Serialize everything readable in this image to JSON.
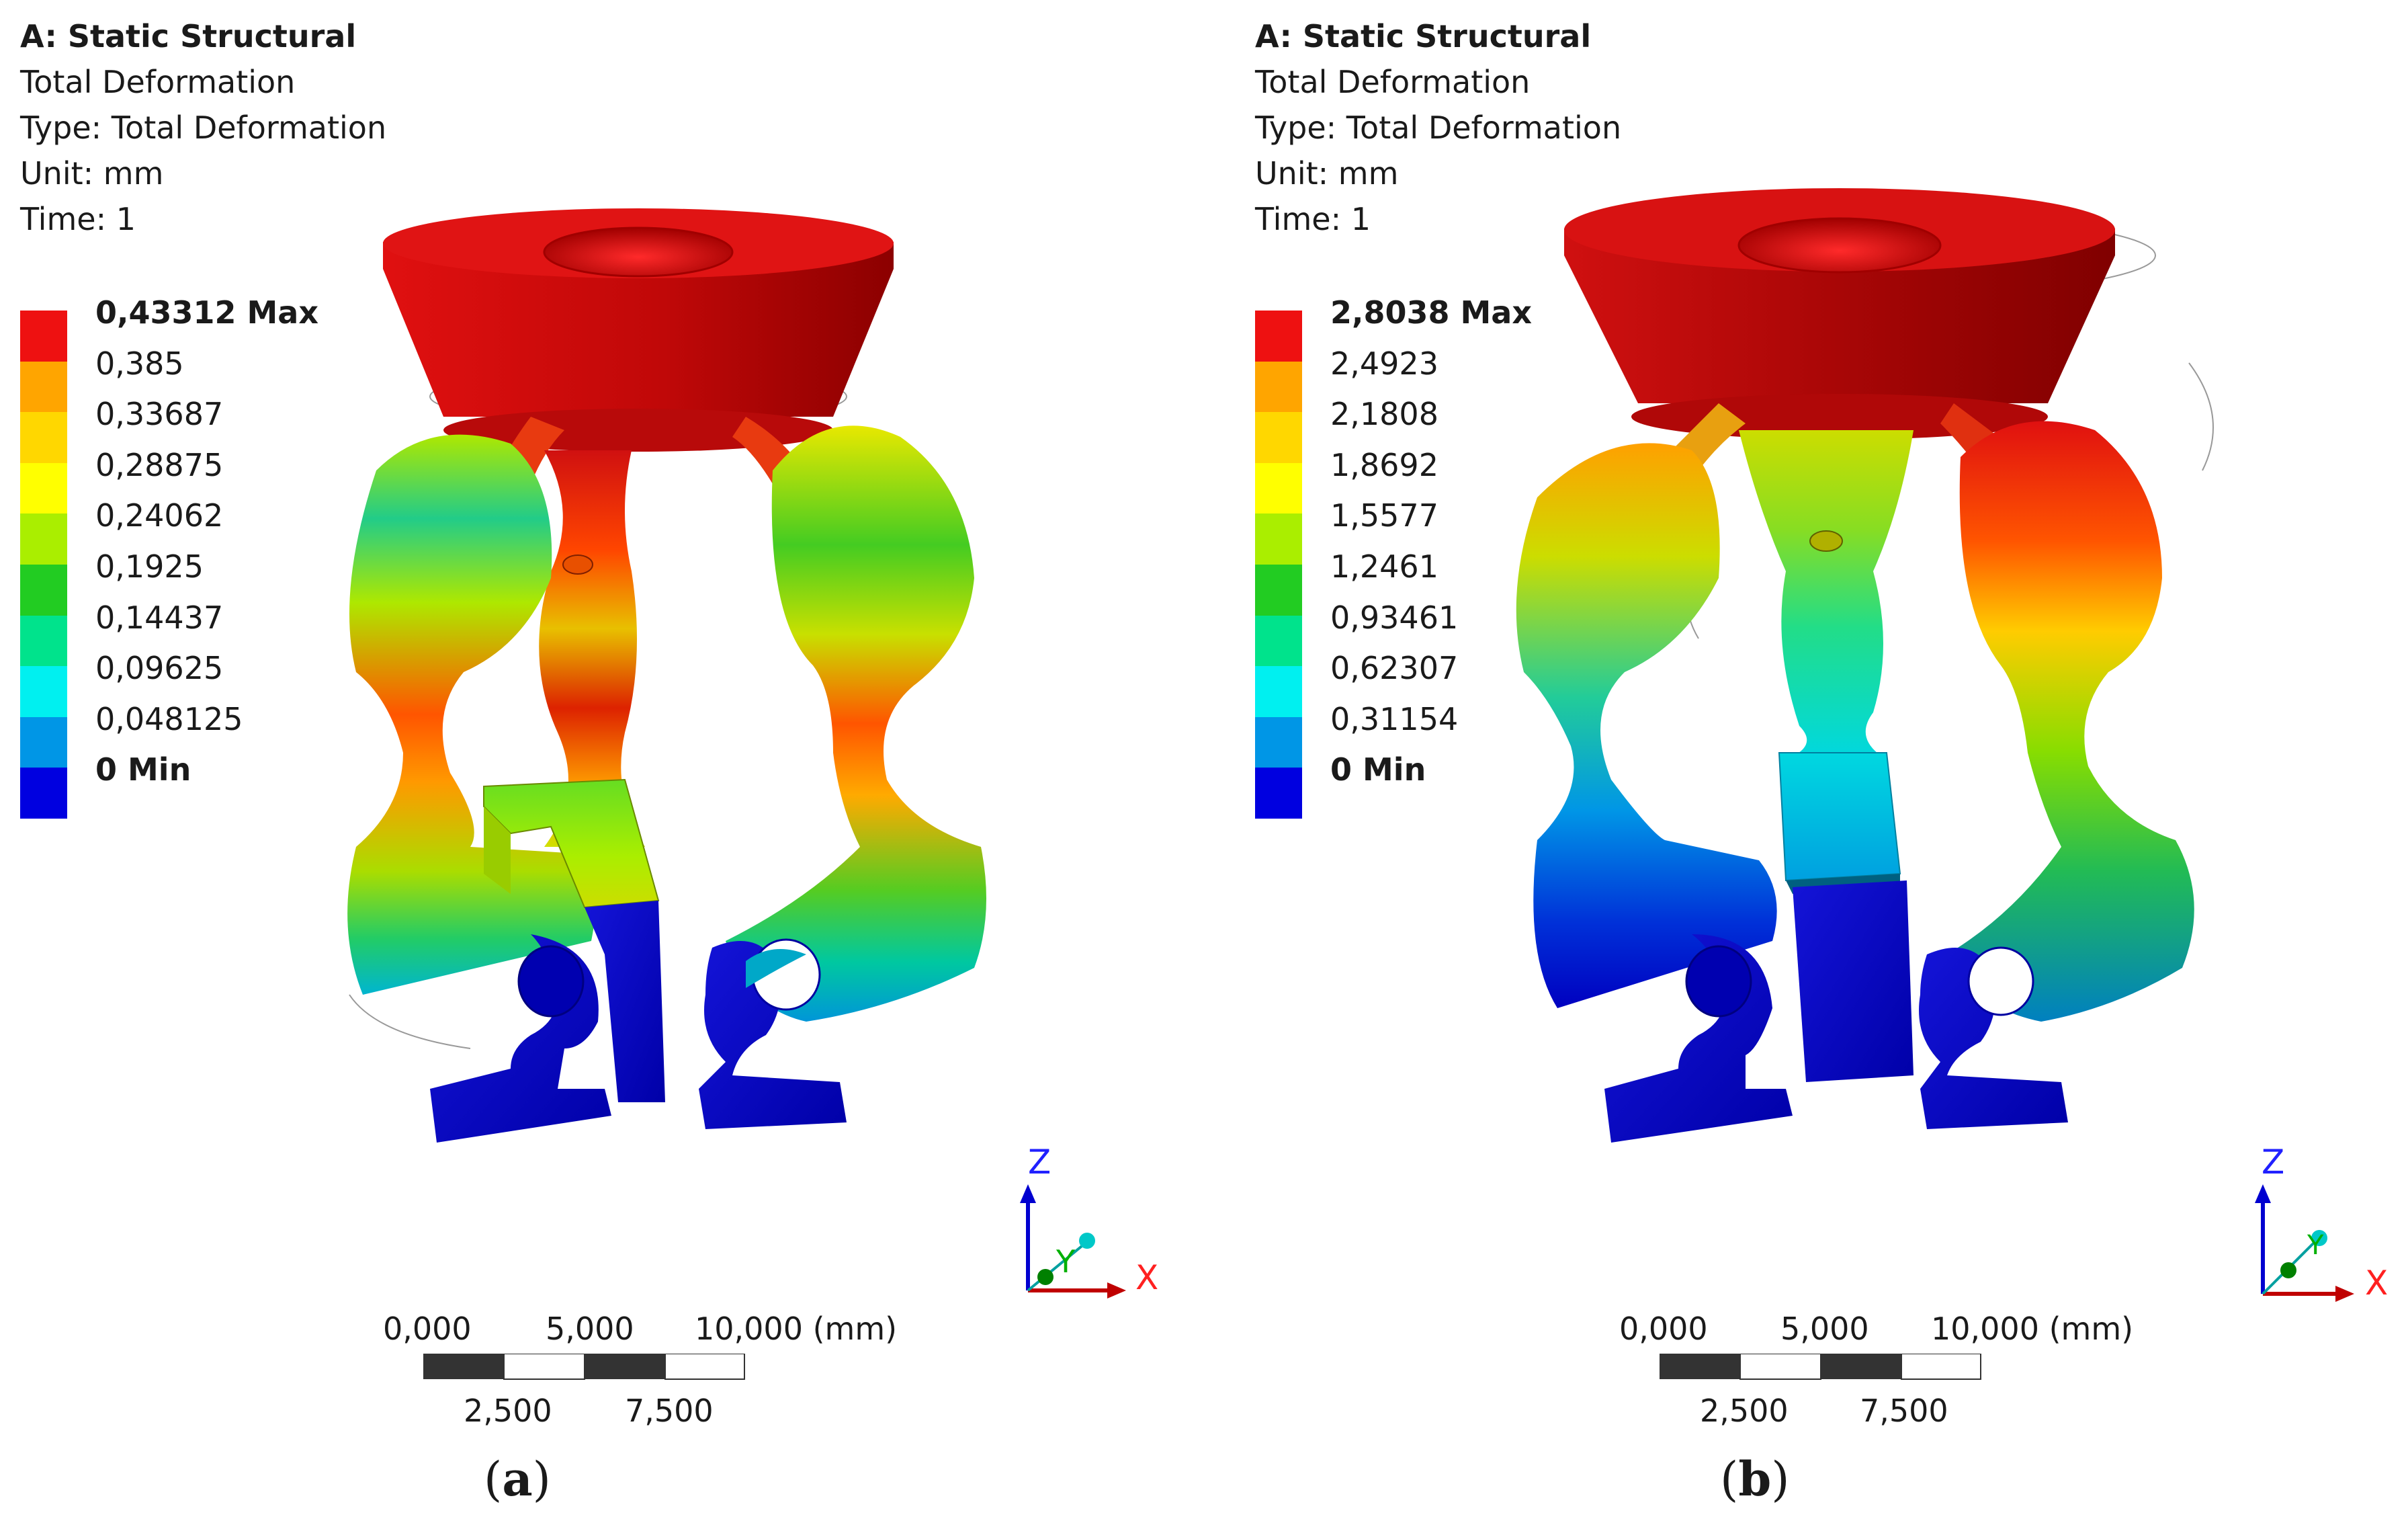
{
  "panels": [
    {
      "caption": "(a)",
      "caption_letter": "a",
      "info": {
        "analysis": "A: Static Structural",
        "result": "Total Deformation",
        "type": "Type: Total Deformation",
        "unit": "Unit: mm",
        "time": "Time: 1"
      },
      "legend": {
        "labels": [
          "0,43312 Max",
          "0,385",
          "0,33687",
          "0,28875",
          "0,24062",
          "0,1925",
          "0,14437",
          "0,09625",
          "0,048125"
        ],
        "min_label": "0 Min"
      },
      "scale": {
        "top_ticks": [
          "0,000",
          "5,000",
          "10,000 (mm)"
        ],
        "bottom_ticks": [
          "2,500",
          "7,500"
        ]
      },
      "axes": {
        "x": "X",
        "y": "Y",
        "z": "Z"
      }
    },
    {
      "caption": "(b)",
      "caption_letter": "b",
      "info": {
        "analysis": "A: Static Structural",
        "result": "Total Deformation",
        "type": "Type: Total Deformation",
        "unit": "Unit: mm",
        "time": "Time: 1"
      },
      "legend": {
        "labels": [
          "2,8038 Max",
          "2,4923",
          "2,1808",
          "1,8692",
          "1,5577",
          "1,2461",
          "0,93461",
          "0,62307",
          "0,31154"
        ],
        "min_label": "0 Min"
      },
      "scale": {
        "top_ticks": [
          "0,000",
          "5,000",
          "10,000 (mm)"
        ],
        "bottom_ticks": [
          "2,500",
          "7,500"
        ]
      },
      "axes": {
        "x": "X",
        "y": "Y",
        "z": "Z"
      }
    }
  ],
  "colormap": [
    "#ee1111",
    "#ffa500",
    "#ffd700",
    "#ffff00",
    "#aaee00",
    "#22cc22",
    "#00e38c",
    "#00f0f0",
    "#0096e6",
    "#0000e0"
  ]
}
